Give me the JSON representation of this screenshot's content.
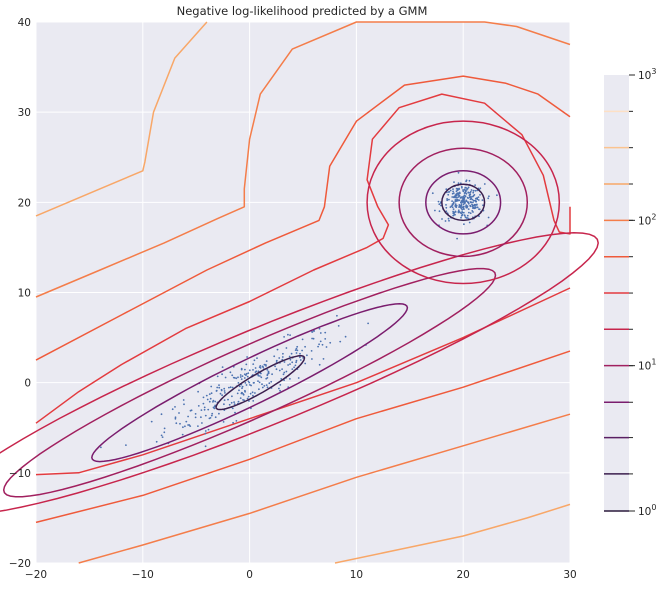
{
  "chart_data": {
    "type": "contour",
    "title": "Negative log-likelihood predicted by a GMM",
    "xlabel": "",
    "ylabel": "",
    "xlim": [
      -20,
      30
    ],
    "ylim": [
      -20,
      40
    ],
    "xticks": [
      "−20",
      "−10",
      "0",
      "10",
      "20",
      "30"
    ],
    "yticks": [
      "−20",
      "−10",
      "0",
      "10",
      "20",
      "30",
      "40"
    ],
    "grid": true,
    "colorbar": {
      "scale": "log",
      "range": [
        1,
        1000
      ],
      "major_ticks": [
        {
          "value": 1,
          "base": "10",
          "exp": "0"
        },
        {
          "value": 10,
          "base": "10",
          "exp": "1"
        },
        {
          "value": 100,
          "base": "10",
          "exp": "2"
        },
        {
          "value": 1000,
          "base": "10",
          "exp": "3"
        }
      ],
      "contour_levels": [
        1,
        1.8,
        3.2,
        5.6,
        10,
        17.8,
        31.6,
        56.2,
        100,
        177.8,
        316.2,
        562.3
      ]
    },
    "components": [
      {
        "name": "",
        "center": [
          0,
          0
        ],
        "cov": [
          [
            16,
            10
          ],
          [
            10,
            8
          ]
        ],
        "n_points": 300
      },
      {
        "name": "",
        "center": [
          20,
          20
        ],
        "cov": [
          [
            1,
            0
          ],
          [
            0,
            1
          ]
        ],
        "n_points": 300
      }
    ],
    "contours": [
      {
        "level": 3.2,
        "color": "#3b1f4e",
        "shape": "ellipse",
        "cx": 1,
        "cy": 0,
        "rx": 5.0,
        "ry": 1.0,
        "angle": 35
      },
      {
        "level": 10,
        "color": "#7a1d6e",
        "shape": "ellipse",
        "cx": 0,
        "cy": 0,
        "rx": 17.0,
        "ry": 2.4,
        "angle": 30
      },
      {
        "level": 17.8,
        "color": "#a1205f",
        "shape": "ellipse",
        "cx": 0,
        "cy": 0,
        "rx": 26.0,
        "ry": 3.8,
        "angle": 28
      },
      {
        "level": 31.6,
        "color": "#c7254c",
        "shape": "ellipse",
        "cx": 2,
        "cy": 1,
        "rx": 34.0,
        "ry": 5.2,
        "angle": 26
      },
      {
        "level": 3.2,
        "color": "#3b1f4e",
        "shape": "circle",
        "cx": 20,
        "cy": 20,
        "r": 2.0
      },
      {
        "level": 10,
        "color": "#7a1d6e",
        "shape": "circle",
        "cx": 20,
        "cy": 20,
        "r": 3.5
      },
      {
        "level": 17.8,
        "color": "#a1205f",
        "shape": "circle",
        "cx": 20,
        "cy": 20,
        "r": 6.0
      },
      {
        "level": 31.6,
        "color": "#c7254c",
        "shape": "circle",
        "cx": 20,
        "cy": 20,
        "r": 9.0
      }
    ],
    "outer_contours": [
      {
        "level": 56.2,
        "color": "#e33b3f",
        "points": [
          [
            30,
            19.5
          ],
          [
            30,
            16.5
          ],
          [
            29,
            16.7
          ],
          [
            28.5,
            18
          ],
          [
            27.5,
            23
          ],
          [
            25.5,
            27.5
          ],
          [
            22,
            31
          ],
          [
            18,
            32
          ],
          [
            14,
            30.5
          ],
          [
            11.5,
            27
          ],
          [
            11,
            22.5
          ],
          [
            12,
            19.5
          ],
          [
            13,
            17.5
          ],
          [
            12.5,
            16
          ],
          [
            11,
            15
          ],
          [
            6,
            12.5
          ],
          [
            0,
            9
          ],
          [
            -6,
            6
          ],
          [
            -12,
            2
          ],
          [
            -16,
            -1
          ],
          [
            -20,
            -4.5
          ]
        ]
      },
      {
        "level": 100,
        "color": "#ef5a3b",
        "points": [
          [
            30,
            29.5
          ],
          [
            27,
            32
          ],
          [
            24,
            33.2
          ],
          [
            20,
            34
          ],
          [
            14.5,
            33
          ],
          [
            10,
            29
          ],
          [
            7.5,
            24
          ],
          [
            7,
            19.5
          ],
          [
            6.5,
            18
          ],
          [
            1.5,
            15.5
          ],
          [
            -4,
            12.5
          ],
          [
            -12,
            7.5
          ],
          [
            -20,
            2.5
          ]
        ]
      },
      {
        "level": 177.8,
        "color": "#f47d4a",
        "points": [
          [
            30,
            37.5
          ],
          [
            25,
            39.5
          ],
          [
            22,
            40
          ],
          [
            10,
            40
          ],
          [
            4,
            37
          ],
          [
            1,
            32
          ],
          [
            0,
            27
          ],
          [
            -0.5,
            21.5
          ],
          [
            -0.5,
            19.5
          ],
          [
            -3,
            18.2
          ],
          [
            -8,
            15.5
          ],
          [
            -14,
            12.5
          ],
          [
            -20,
            9.5
          ]
        ]
      },
      {
        "level": 316.2,
        "color": "#f8a768",
        "points": [
          [
            -4,
            40
          ],
          [
            -7,
            36
          ],
          [
            -9,
            30
          ],
          [
            -9.8,
            24.5
          ],
          [
            -10,
            23.5
          ],
          [
            -14,
            21.5
          ],
          [
            -20,
            18.5
          ]
        ]
      },
      {
        "level": 56.2,
        "color": "#e33b3f",
        "points": [
          [
            -20,
            -10.2
          ],
          [
            -16,
            -10
          ],
          [
            -10,
            -8
          ],
          [
            0,
            -4
          ],
          [
            10,
            0
          ],
          [
            20,
            5
          ],
          [
            30,
            10.5
          ]
        ]
      },
      {
        "level": 100,
        "color": "#ef5a3b",
        "points": [
          [
            -20,
            -15.5
          ],
          [
            -10,
            -12.5
          ],
          [
            0,
            -8.5
          ],
          [
            10,
            -4
          ],
          [
            20,
            -0.5
          ],
          [
            30,
            3.5
          ]
        ]
      },
      {
        "level": 177.8,
        "color": "#f47d4a",
        "points": [
          [
            -16,
            -20
          ],
          [
            -10,
            -18
          ],
          [
            0,
            -14.5
          ],
          [
            10,
            -10.5
          ],
          [
            20,
            -7
          ],
          [
            30,
            -3.5
          ]
        ]
      },
      {
        "level": 316.2,
        "color": "#f8a768",
        "points": [
          [
            8,
            -20
          ],
          [
            14,
            -18.5
          ],
          [
            20,
            -17
          ],
          [
            26,
            -15
          ],
          [
            30,
            -13.5
          ]
        ]
      }
    ]
  }
}
